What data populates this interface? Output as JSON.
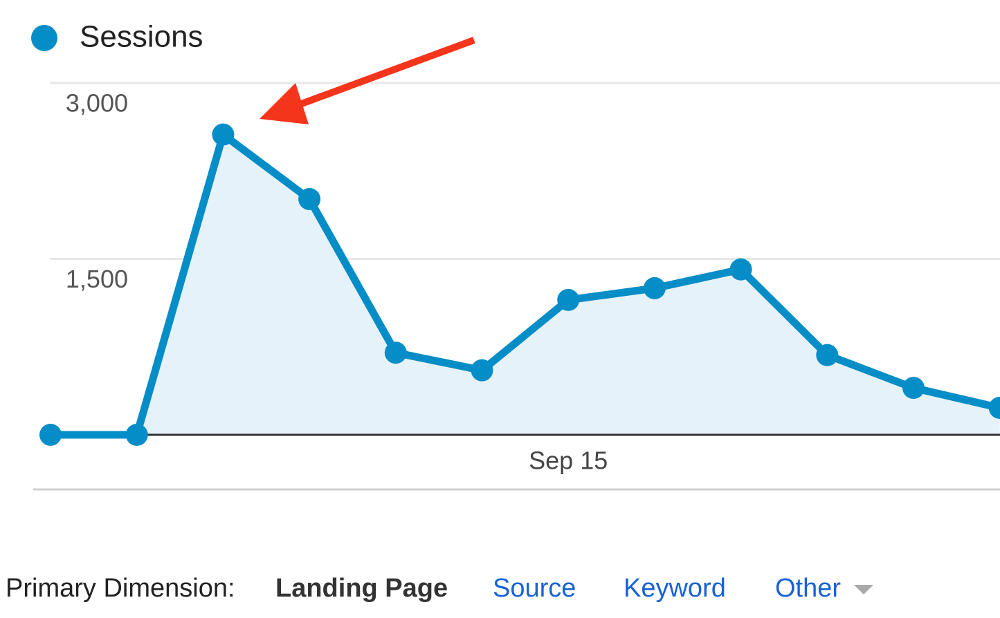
{
  "chart_data": {
    "type": "line",
    "categories": [
      null,
      null,
      null,
      null,
      null,
      null,
      "Sep 15",
      null,
      null,
      null,
      null,
      null
    ],
    "series": [
      {
        "name": "Sessions",
        "color": "#058dc7",
        "values": [
          0,
          0,
          2560,
          2010,
          700,
          550,
          1150,
          1250,
          1410,
          680,
          400,
          230
        ]
      }
    ],
    "ylim": [
      0,
      3000
    ],
    "yticks": [
      {
        "value": 1500,
        "label": "1,500"
      },
      {
        "value": 3000,
        "label": "3,000"
      }
    ],
    "grid": true,
    "area_fill": "#e6f2f9"
  },
  "primary_dimension": {
    "label": "Primary Dimension:",
    "selected": "Landing Page",
    "options": [
      "Source",
      "Keyword",
      "Other"
    ]
  }
}
